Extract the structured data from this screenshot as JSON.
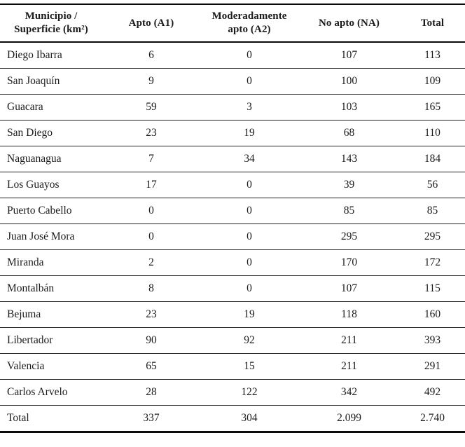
{
  "table": {
    "columns": {
      "municipio": {
        "line1": "Municipio /",
        "line2": "Superficie (km²)"
      },
      "apto": "Apto (A1)",
      "moderadamente": {
        "line1": "Moderadamente",
        "line2": "apto (A2)"
      },
      "no_apto": "No apto (NA)",
      "total": "Total"
    },
    "rows": [
      {
        "name": "Diego Ibarra",
        "a1": "6",
        "a2": "0",
        "na": "107",
        "total": "113"
      },
      {
        "name": "San Joaquín",
        "a1": "9",
        "a2": "0",
        "na": "100",
        "total": "109"
      },
      {
        "name": "Guacara",
        "a1": "59",
        "a2": "3",
        "na": "103",
        "total": "165"
      },
      {
        "name": "San Diego",
        "a1": "23",
        "a2": "19",
        "na": "68",
        "total": "110"
      },
      {
        "name": "Naguanagua",
        "a1": "7",
        "a2": "34",
        "na": "143",
        "total": "184"
      },
      {
        "name": "Los Guayos",
        "a1": "17",
        "a2": "0",
        "na": "39",
        "total": "56"
      },
      {
        "name": "Puerto Cabello",
        "a1": "0",
        "a2": "0",
        "na": "85",
        "total": "85"
      },
      {
        "name": "Juan José Mora",
        "a1": "0",
        "a2": "0",
        "na": "295",
        "total": "295"
      },
      {
        "name": "Miranda",
        "a1": "2",
        "a2": "0",
        "na": "170",
        "total": "172"
      },
      {
        "name": "Montalbán",
        "a1": "8",
        "a2": "0",
        "na": "107",
        "total": "115"
      },
      {
        "name": "Bejuma",
        "a1": "23",
        "a2": "19",
        "na": "118",
        "total": "160"
      },
      {
        "name": "Libertador",
        "a1": "90",
        "a2": "92",
        "na": "211",
        "total": "393"
      },
      {
        "name": "Valencia",
        "a1": "65",
        "a2": "15",
        "na": "211",
        "total": "291"
      },
      {
        "name": "Carlos Arvelo",
        "a1": "28",
        "a2": "122",
        "na": "342",
        "total": "492"
      }
    ],
    "total_row": {
      "label": "Total",
      "a1": "337",
      "a2": "304",
      "na": "2.099",
      "total": "2.740"
    },
    "colors": {
      "text": "#1b1b1b",
      "rule": "#0a0a0a",
      "background": "#ffffff"
    }
  }
}
